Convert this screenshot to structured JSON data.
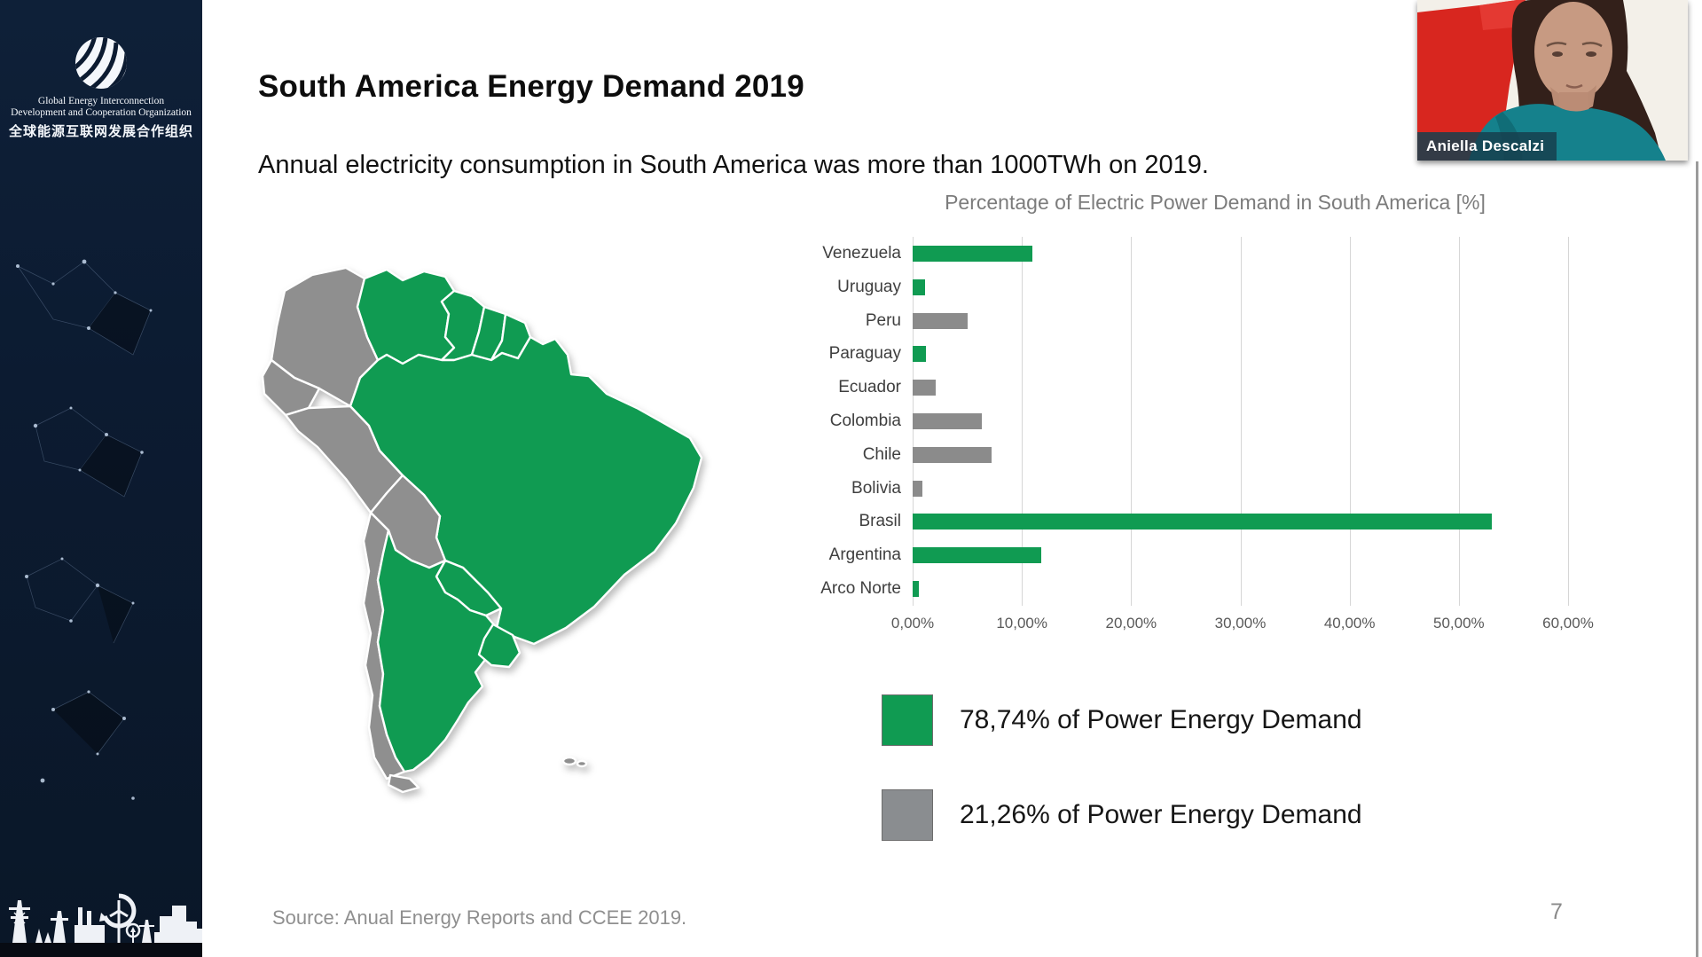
{
  "colors": {
    "green": "#109b52",
    "gray_bar": "#8b8b8b",
    "map_gray": "#8f8f8f",
    "sidebar_navy": "#0c1b31",
    "webcam_red": "#d8261f",
    "webcam_shirt": "#15818c"
  },
  "sidebar": {
    "org_line1": "Global Energy Interconnection",
    "org_line2": "Development and Cooperation Organization",
    "org_cn": "全球能源互联网发展合作组织"
  },
  "slide": {
    "title": "South America Energy Demand 2019",
    "subtitle": "Annual electricity consumption in South America was more than 1000TWh on 2019.",
    "source": "Source: Anual Energy Reports and CCEE 2019.",
    "page_number": "7"
  },
  "chart_data": {
    "type": "bar",
    "orientation": "horizontal",
    "title": "Percentage of Electric Power Demand in South America [%]",
    "categories": [
      "Venezuela",
      "Uruguay",
      "Peru",
      "Paraguay",
      "Ecuador",
      "Colombia",
      "Chile",
      "Bolivia",
      "Brasil",
      "Argentina",
      "Arco Norte"
    ],
    "values": [
      11.0,
      1.1,
      5.0,
      1.2,
      2.1,
      6.3,
      7.2,
      0.9,
      53.0,
      11.8,
      0.6
    ],
    "bar_colors": [
      "green",
      "green",
      "gray",
      "green",
      "gray",
      "gray",
      "gray",
      "gray",
      "green",
      "green",
      "green"
    ],
    "xlim": [
      0,
      60
    ],
    "x_tick_labels": [
      "0,00%",
      "10,00%",
      "20,00%",
      "30,00%",
      "40,00%",
      "50,00%",
      "60,00%"
    ],
    "grid": true,
    "legend_position": "below"
  },
  "legend": {
    "items": [
      {
        "label": "78,74% of Power Energy Demand",
        "color": "#109b52"
      },
      {
        "label": "21,26% of Power Energy Demand",
        "color": "#8a8d90"
      }
    ]
  },
  "map": {
    "green_countries": [
      "Venezuela",
      "Guyana",
      "Suriname",
      "French Guiana",
      "Brasil",
      "Paraguay",
      "Argentina",
      "Uruguay"
    ],
    "gray_countries": [
      "Colombia",
      "Ecuador",
      "Peru",
      "Bolivia",
      "Chile"
    ]
  },
  "webcam": {
    "name": "Aniella Descalzi"
  }
}
